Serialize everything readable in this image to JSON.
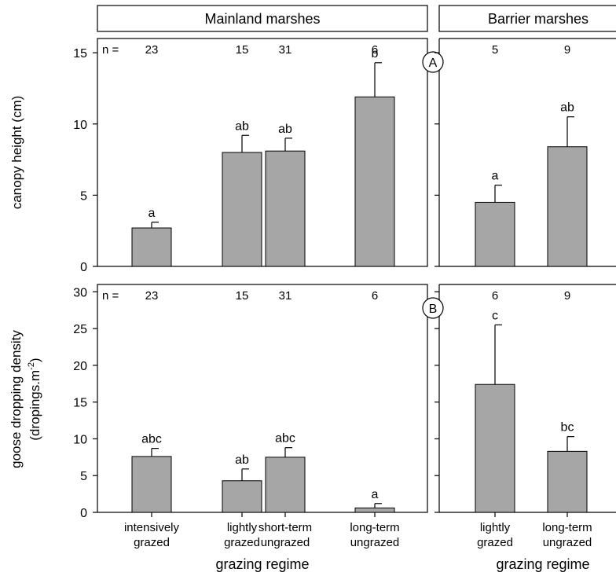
{
  "header": {
    "mainland": "Mainland marshes",
    "barrier": "Barrier marshes"
  },
  "n_prefix": "n =",
  "xlabel": "grazing regime",
  "chart_data": [
    {
      "type": "bar",
      "panel": "A",
      "ylabel": "canopy height (cm)",
      "ylim": [
        0,
        16
      ],
      "yticks": [
        0,
        5,
        10,
        15
      ],
      "groups": [
        {
          "name": "Mainland marshes",
          "categories": [
            "intensively grazed",
            "lightly grazed",
            "short-term ungrazed",
            "long-term ungrazed"
          ],
          "values": [
            2.7,
            8.0,
            8.1,
            11.9
          ],
          "errors": [
            0.4,
            1.2,
            0.9,
            2.4
          ],
          "letters": [
            "a",
            "ab",
            "ab",
            "b"
          ],
          "n": [
            "23",
            "15",
            "31",
            "6"
          ]
        },
        {
          "name": "Barrier marshes",
          "categories": [
            "lightly grazed",
            "long-term ungrazed"
          ],
          "values": [
            4.5,
            8.4
          ],
          "errors": [
            1.2,
            2.1
          ],
          "letters": [
            "a",
            "ab"
          ],
          "n": [
            "5",
            "9"
          ]
        }
      ]
    },
    {
      "type": "bar",
      "panel": "B",
      "ylabel": "goose dropping density",
      "ylabel2": "(dropings.m",
      "ylabel2_sup": "-2",
      "ylabel2_end": ")",
      "ylim": [
        0,
        31
      ],
      "yticks": [
        0,
        5,
        10,
        15,
        20,
        25,
        30
      ],
      "groups": [
        {
          "name": "Mainland marshes",
          "categories": [
            "intensively grazed",
            "lightly grazed",
            "short-term ungrazed",
            "long-term ungrazed"
          ],
          "values": [
            7.6,
            4.3,
            7.5,
            0.6
          ],
          "errors": [
            1.1,
            1.6,
            1.3,
            0.6
          ],
          "letters": [
            "abc",
            "ab",
            "abc",
            "a"
          ],
          "n": [
            "23",
            "15",
            "31",
            "6"
          ]
        },
        {
          "name": "Barrier marshes",
          "categories": [
            "lightly grazed",
            "long-term ungrazed"
          ],
          "values": [
            17.4,
            8.3
          ],
          "errors": [
            8.1,
            2.0
          ],
          "letters": [
            "c",
            "bc"
          ],
          "n": [
            "6",
            "9"
          ]
        }
      ]
    }
  ],
  "xtick_labels": {
    "mainland": [
      [
        "intensively",
        "grazed"
      ],
      [
        "lightly",
        "grazed"
      ],
      [
        "short-term",
        "ungrazed"
      ],
      [
        "long-term",
        "ungrazed"
      ]
    ],
    "barrier": [
      [
        "lightly",
        "grazed"
      ],
      [
        "long-term",
        "ungrazed"
      ]
    ]
  }
}
